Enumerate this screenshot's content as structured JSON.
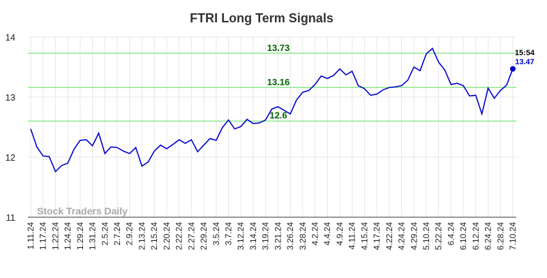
{
  "chart_data": {
    "type": "line",
    "title": "FTRI Long Term Signals",
    "watermark": "Stock Traders Daily",
    "categories": [
      "1.11.24",
      null,
      "1.17.24",
      null,
      "1.22.24",
      null,
      "1.24.24",
      null,
      "1.29.24",
      null,
      "1.31.24",
      null,
      "2.5.24",
      null,
      "2.7.24",
      null,
      "2.9.24",
      null,
      "2.13.24",
      null,
      "2.15.24",
      null,
      "2.20.24",
      null,
      "2.22.24",
      null,
      "2.27.24",
      null,
      "2.29.24",
      null,
      "3.5.24",
      null,
      "3.7.24",
      null,
      "3.12.24",
      null,
      "3.14.24",
      null,
      "3.19.24",
      null,
      "3.21.24",
      null,
      "3.26.24",
      null,
      "3.28.24",
      null,
      "4.2.24",
      null,
      "4.4.24",
      null,
      "4.9.24",
      null,
      "4.11.24",
      null,
      "4.15.24",
      null,
      "4.17.24",
      null,
      "4.22.24",
      null,
      "4.24.24",
      null,
      "4.29.24",
      null,
      "5.10.24",
      null,
      "5.22.24",
      null,
      "6.4.24",
      null,
      "6.10.24",
      null,
      "6.12.24",
      null,
      "6.24.24",
      null,
      "6.28.24",
      null,
      "7.10.24"
    ],
    "series": [
      {
        "color": "#0000cc",
        "values": [
          12.47,
          12.17,
          12.02,
          12.01,
          11.76,
          11.86,
          11.9,
          12.13,
          12.28,
          12.29,
          12.19,
          12.4,
          12.06,
          12.17,
          12.16,
          12.1,
          12.06,
          12.16,
          11.85,
          11.92,
          12.1,
          12.2,
          12.14,
          12.21,
          12.29,
          12.23,
          12.29,
          12.09,
          12.2,
          12.31,
          12.28,
          12.49,
          12.62,
          12.47,
          12.51,
          12.63,
          12.56,
          12.57,
          12.62,
          12.8,
          12.84,
          12.78,
          12.72,
          12.95,
          13.08,
          13.11,
          13.21,
          13.35,
          13.31,
          13.36,
          13.47,
          13.37,
          13.43,
          13.19,
          13.14,
          13.03,
          13.05,
          13.12,
          13.16,
          13.17,
          13.19,
          13.28,
          13.5,
          13.44,
          13.72,
          13.81,
          13.58,
          13.45,
          13.21,
          13.23,
          13.19,
          13.02,
          13.03,
          12.72,
          13.15,
          12.98,
          13.11,
          13.2,
          13.47
        ]
      }
    ],
    "hlines": [
      13.73,
      13.16,
      12.6
    ],
    "hline_color": "#90e890",
    "hline_label_color": "#006400",
    "last_time": "15:54",
    "ylim": [
      11,
      14
    ],
    "yticks": [
      11,
      12,
      13,
      14
    ],
    "grid": true
  }
}
